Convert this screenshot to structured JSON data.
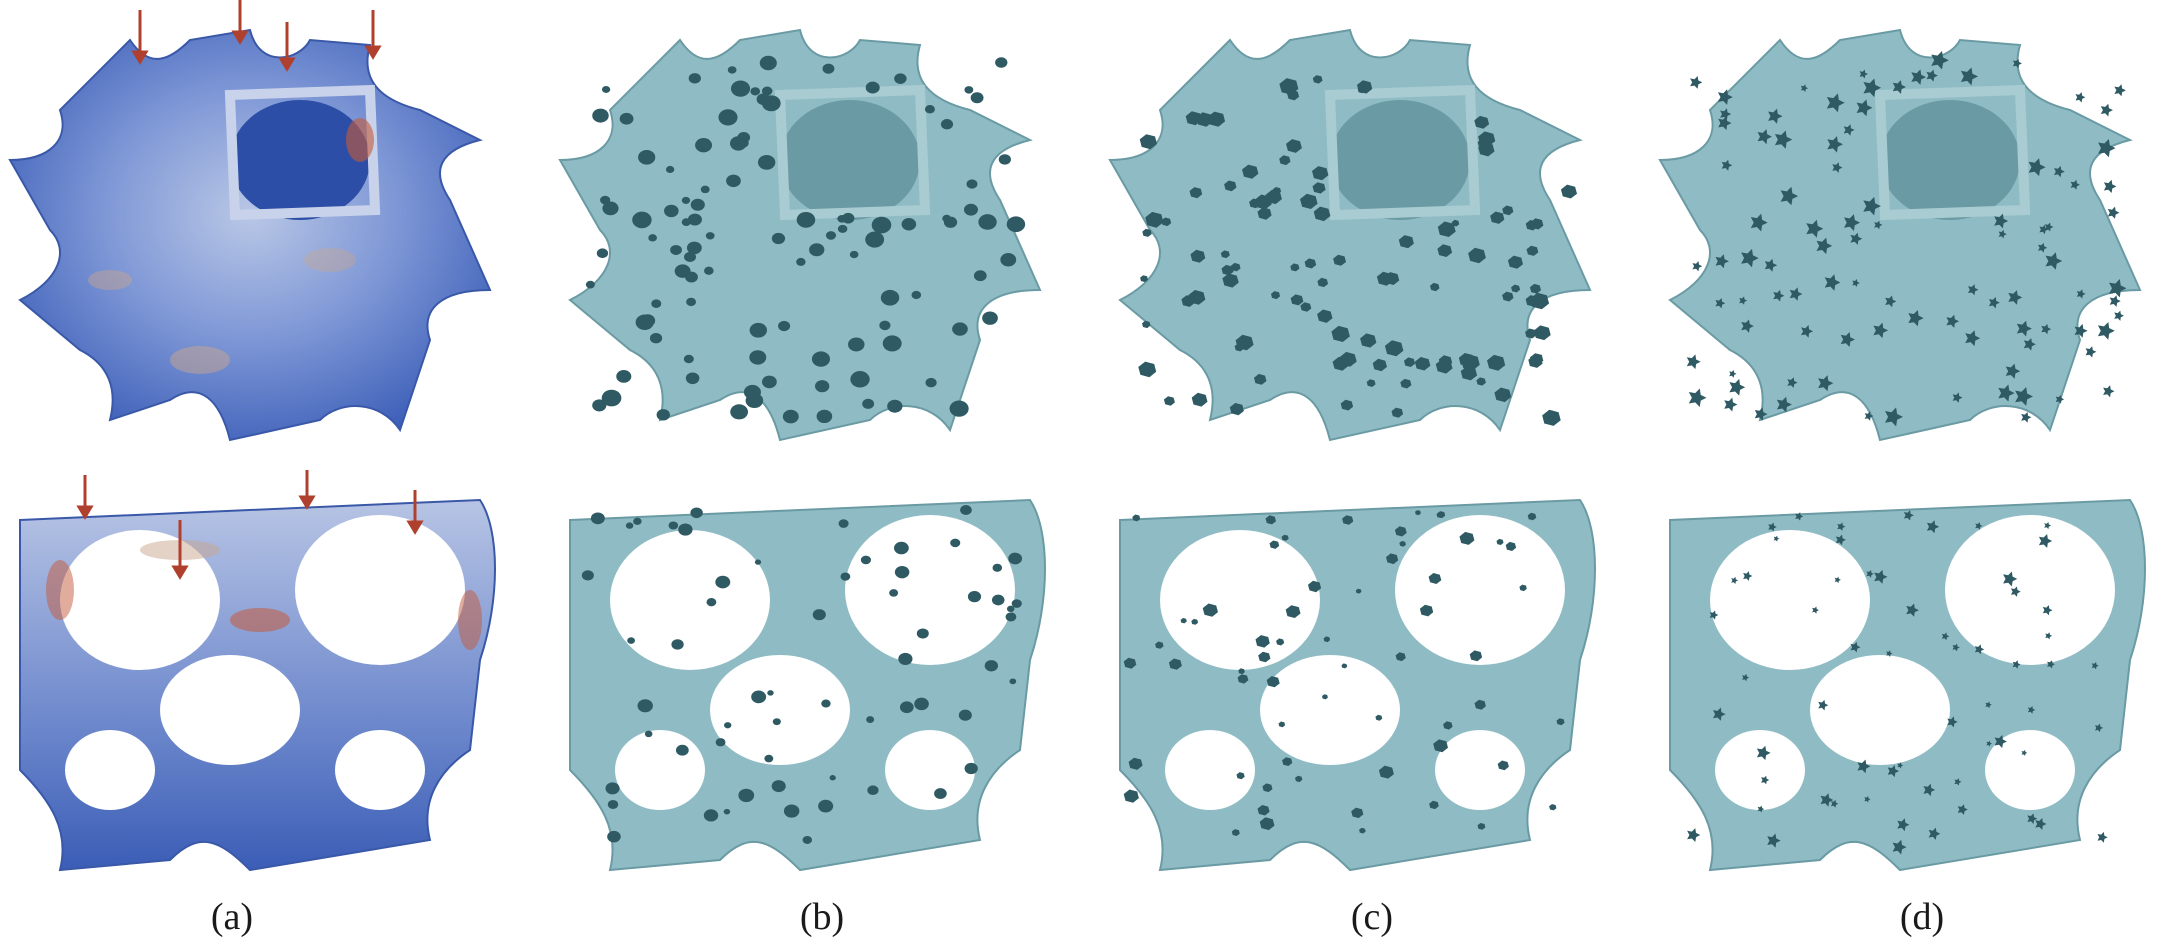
{
  "figure": {
    "columns": [
      {
        "label": "(a)",
        "render": "stress-colormap",
        "surface_color": "#4a6fc2",
        "hot_color": "#c45a3a",
        "has_load_arrows": true
      },
      {
        "label": "(b)",
        "render": "perforated-round-holes",
        "surface_color": "#8fbcc4"
      },
      {
        "label": "(c)",
        "render": "perforated-voronoi-holes",
        "surface_color": "#8fbcc4"
      },
      {
        "label": "(d)",
        "render": "perforated-star-holes",
        "surface_color": "#8fbcc4"
      }
    ],
    "rows": [
      {
        "shape": "triply-periodic-surface-view-1"
      },
      {
        "shape": "triply-periodic-surface-view-2"
      }
    ],
    "colors": {
      "arrow": "#b0402e",
      "hole_shadow": "#2f5a63",
      "teal_shade": "#6a9aa3"
    }
  }
}
